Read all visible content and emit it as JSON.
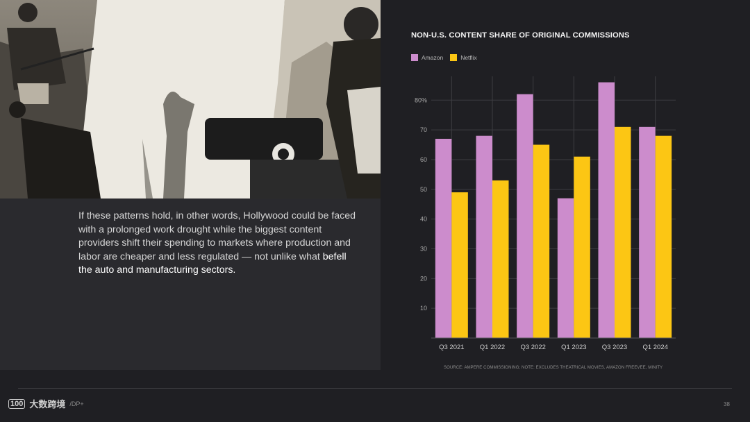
{
  "body_text": {
    "line1": "If these patterns hold, in other words, Hollywood could be faced with a prolonged work drought while the biggest content providers shift their spending to markets where production and labor are cheaper and less regulated — not unlike what ",
    "line2": "befell the auto and manufacturing sectors."
  },
  "chart_data": {
    "type": "bar",
    "title": "NON-U.S. CONTENT SHARE OF ORIGINAL COMMISSIONS",
    "categories": [
      "Q3 2021",
      "Q1 2022",
      "Q3 2022",
      "Q1 2023",
      "Q3 2023",
      "Q1 2024"
    ],
    "series": [
      {
        "name": "Amazon",
        "color": "#cc8ccc",
        "values": [
          67,
          68,
          82,
          47,
          86,
          71
        ]
      },
      {
        "name": "Netflix",
        "color": "#fcc614",
        "values": [
          49,
          53,
          65,
          61,
          71,
          68
        ]
      }
    ],
    "yticks": [
      10,
      20,
      30,
      40,
      50,
      60,
      70,
      80
    ],
    "ytick_labels": [
      "10",
      "20",
      "30",
      "40",
      "50",
      "60",
      "70",
      "80%"
    ],
    "ylim": [
      0,
      88
    ],
    "grid": true,
    "legend_position": "top-left",
    "source": "SOURCE: AMPERE COMMISSIONING; NOTE: EXCLUDES THEATRICAL MOVIES, AMAZON FREEVEE, MINITY"
  },
  "footer": {
    "logo_mark": "100",
    "logo_text": "大数跨境",
    "logo_sub": "/DP+",
    "page_number": "38"
  }
}
